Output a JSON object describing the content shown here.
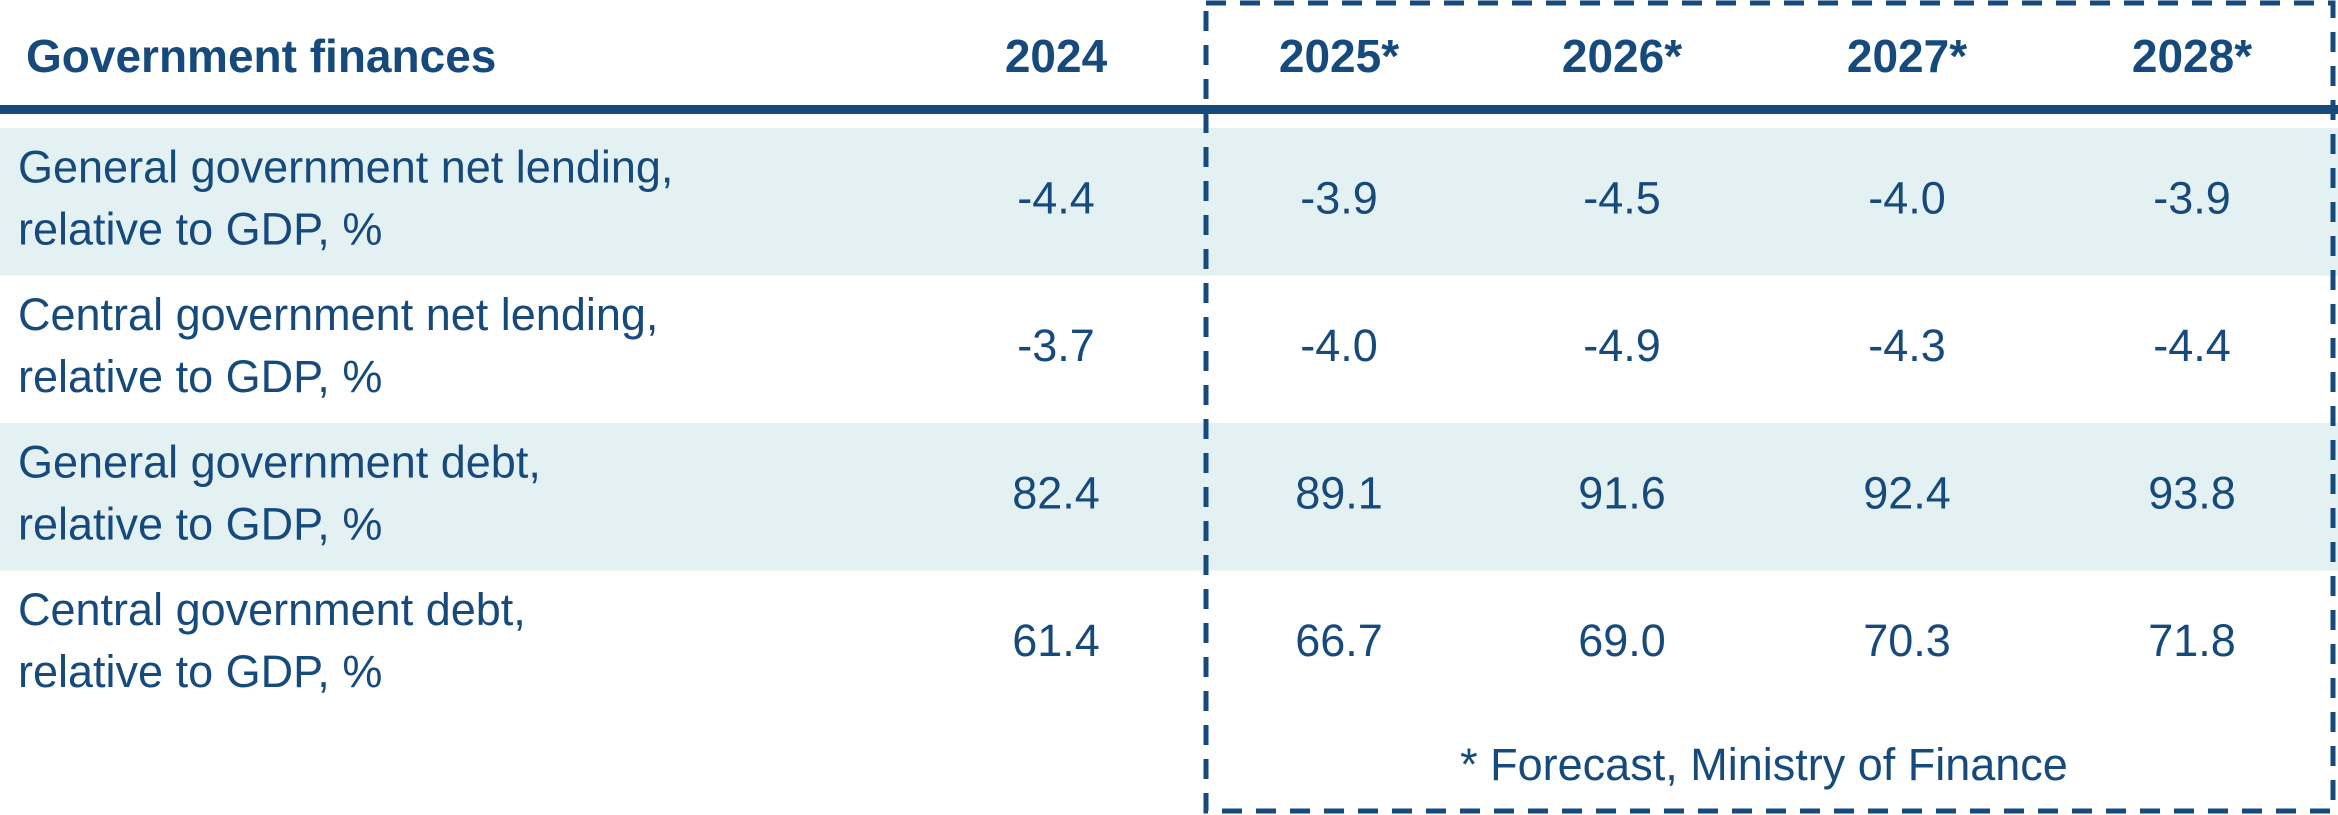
{
  "table": {
    "header": [
      "Government finances",
      "2024",
      "2025*",
      "2026*",
      "2027*",
      "2028*"
    ],
    "rows": [
      {
        "label": [
          "General government net lending,",
          "relative to GDP, %"
        ],
        "values": [
          "-4.4",
          "-3.9",
          "-4.5",
          "-4.0",
          "-3.9"
        ]
      },
      {
        "label": [
          "Central government net lending,",
          "relative to GDP, %"
        ],
        "values": [
          "-3.7",
          "-4.0",
          "-4.9",
          "-4.3",
          "-4.4"
        ]
      },
      {
        "label": [
          "General government debt,",
          "relative to GDP, %"
        ],
        "values": [
          "82.4",
          "89.1",
          "91.6",
          "92.4",
          "93.8"
        ]
      },
      {
        "label": [
          "Central government debt,",
          "relative to GDP, %"
        ],
        "values": [
          "61.4",
          "66.7",
          "69.0",
          "70.3",
          "71.8"
        ]
      }
    ],
    "footnote": "* Forecast, Ministry of Finance"
  }
}
